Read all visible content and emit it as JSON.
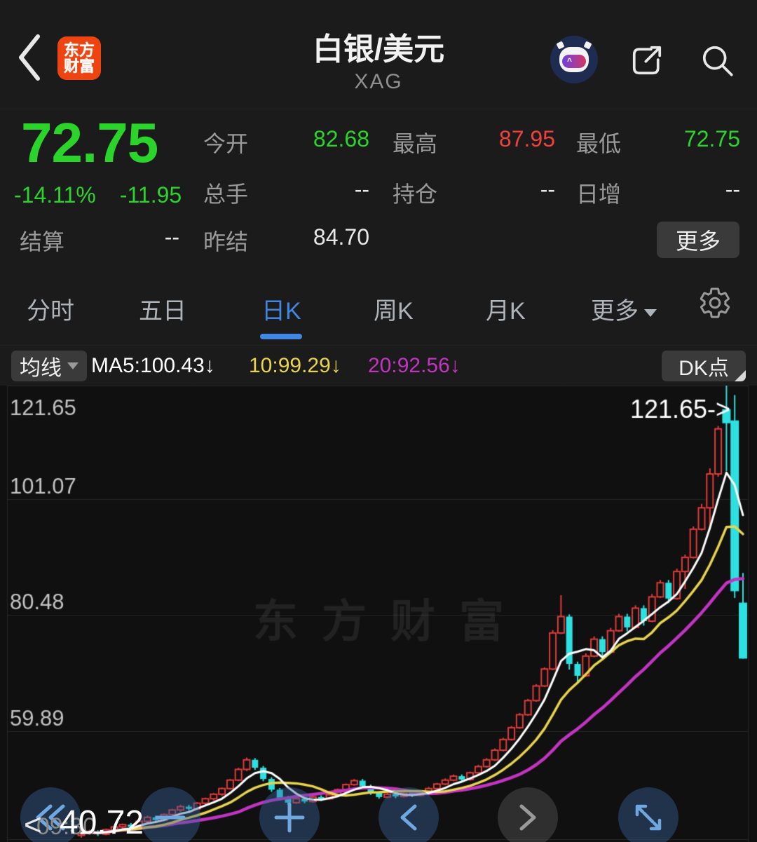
{
  "header": {
    "logo_line1": "东方",
    "logo_line2": "财富",
    "title": "白银/美元",
    "subtitle": "XAG"
  },
  "quote": {
    "price": "72.75",
    "change_pct": "-14.11%",
    "change_val": "-11.95",
    "fields": [
      {
        "label": "今开",
        "value": "82.68",
        "color": "green"
      },
      {
        "label": "最高",
        "value": "87.95",
        "color": "red"
      },
      {
        "label": "最低",
        "value": "72.75",
        "color": "green"
      },
      {
        "label": "总手",
        "value": "--",
        "color": "white"
      },
      {
        "label": "持仓",
        "value": "--",
        "color": "white"
      },
      {
        "label": "日增",
        "value": "--",
        "color": "white"
      },
      {
        "label": "结算",
        "value": "--",
        "color": "white"
      },
      {
        "label": "昨结",
        "value": "84.70",
        "color": "white"
      }
    ],
    "more_label": "更多"
  },
  "tabs": {
    "items": [
      {
        "label": "分时"
      },
      {
        "label": "五日"
      },
      {
        "label": "日K"
      },
      {
        "label": "周K"
      },
      {
        "label": "月K"
      },
      {
        "label": "更多"
      }
    ],
    "active_index": 2
  },
  "indicator_bar": {
    "ma_selector": "均线",
    "ma5": "MA5:100.43↓",
    "ma10": "10:99.29↓",
    "ma20": "20:92.56↓",
    "dk_label": "DK点"
  },
  "chart_data": {
    "type": "candlestick",
    "title": "白银/美元 XAG 日K",
    "ylim": [
      40.72,
      121.65
    ],
    "y_ticks": [
      121.65,
      101.07,
      80.48,
      59.89,
      40.72
    ],
    "annotation": "121.65->",
    "watermark": "东方财富",
    "bottom_axis_label": "40.72",
    "pan_hint": "<",
    "clipped_time_label": "09:30",
    "up_color": "#e23b3b",
    "down_color": "#2ee0e0",
    "grid_color": "#262626",
    "ma_lines": [
      {
        "name": "MA5",
        "color": "#ffffff",
        "last": 100.43
      },
      {
        "name": "MA10",
        "color": "#e8d44d",
        "last": 99.29
      },
      {
        "name": "MA20",
        "color": "#c234c2",
        "last": 92.56
      }
    ],
    "candles": [
      [
        41.4,
        42.0,
        41.0,
        41.8
      ],
      [
        41.8,
        42.4,
        41.5,
        42.1
      ],
      [
        42.1,
        42.3,
        41.3,
        41.6
      ],
      [
        41.6,
        42.6,
        41.4,
        42.4
      ],
      [
        42.4,
        43.1,
        42.1,
        42.9
      ],
      [
        42.9,
        43.5,
        42.6,
        43.3
      ],
      [
        43.3,
        43.6,
        42.6,
        42.9
      ],
      [
        42.9,
        44.1,
        42.7,
        43.9
      ],
      [
        43.9,
        44.9,
        43.6,
        44.6
      ],
      [
        44.6,
        44.9,
        43.8,
        44.1
      ],
      [
        44.1,
        45.3,
        43.9,
        45.1
      ],
      [
        45.1,
        46.1,
        44.8,
        45.9
      ],
      [
        45.9,
        46.8,
        45.6,
        46.5
      ],
      [
        46.5,
        46.8,
        45.8,
        46.1
      ],
      [
        46.1,
        47.3,
        45.9,
        47.1
      ],
      [
        47.1,
        48.1,
        46.8,
        47.9
      ],
      [
        47.9,
        48.9,
        47.6,
        48.7
      ],
      [
        48.7,
        49.9,
        48.4,
        49.7
      ],
      [
        49.7,
        51.4,
        49.5,
        51.2
      ],
      [
        51.2,
        53.4,
        51.0,
        53.1
      ],
      [
        53.1,
        55.2,
        52.8,
        54.8
      ],
      [
        54.8,
        55.1,
        53.0,
        53.4
      ],
      [
        53.4,
        53.7,
        51.0,
        51.4
      ],
      [
        51.4,
        51.7,
        49.1,
        49.5
      ],
      [
        49.5,
        49.8,
        47.6,
        48.0
      ],
      [
        48.0,
        48.4,
        46.8,
        47.2
      ],
      [
        47.2,
        48.2,
        47.0,
        47.9
      ],
      [
        47.9,
        48.1,
        47.1,
        47.4
      ],
      [
        47.4,
        48.5,
        47.2,
        48.2
      ],
      [
        48.2,
        48.5,
        47.5,
        47.9
      ],
      [
        47.9,
        48.8,
        47.7,
        48.6
      ],
      [
        48.6,
        49.7,
        48.3,
        49.5
      ],
      [
        49.5,
        50.6,
        49.3,
        50.4
      ],
      [
        50.4,
        51.4,
        50.2,
        51.1
      ],
      [
        51.1,
        51.4,
        49.8,
        50.1
      ],
      [
        50.1,
        50.4,
        48.6,
        49.0
      ],
      [
        49.0,
        49.2,
        47.9,
        48.2
      ],
      [
        48.2,
        49.0,
        48.0,
        48.7
      ],
      [
        48.7,
        48.9,
        48.0,
        48.3
      ],
      [
        48.3,
        49.2,
        48.1,
        48.9
      ],
      [
        48.9,
        49.1,
        48.2,
        48.5
      ],
      [
        48.5,
        49.4,
        48.3,
        49.1
      ],
      [
        49.1,
        50.0,
        48.9,
        49.7
      ],
      [
        49.7,
        50.7,
        49.5,
        50.5
      ],
      [
        50.5,
        51.5,
        50.3,
        51.2
      ],
      [
        51.2,
        52.2,
        51.0,
        51.9
      ],
      [
        51.9,
        52.2,
        51.0,
        51.3
      ],
      [
        51.3,
        52.7,
        51.1,
        52.5
      ],
      [
        52.5,
        53.9,
        52.3,
        53.6
      ],
      [
        53.6,
        55.1,
        53.4,
        54.8
      ],
      [
        54.8,
        56.8,
        54.6,
        56.5
      ],
      [
        56.5,
        58.7,
        56.3,
        58.4
      ],
      [
        58.4,
        60.8,
        58.2,
        60.5
      ],
      [
        60.5,
        63.1,
        60.3,
        62.8
      ],
      [
        62.8,
        65.6,
        62.6,
        65.3
      ],
      [
        65.3,
        68.2,
        65.1,
        67.9
      ],
      [
        67.9,
        71.2,
        67.7,
        70.9
      ],
      [
        70.9,
        77.8,
        70.7,
        77.3
      ],
      [
        77.3,
        84.0,
        77.1,
        80.2
      ],
      [
        80.2,
        80.6,
        70.8,
        71.8
      ],
      [
        71.8,
        72.2,
        68.6,
        69.7
      ],
      [
        69.7,
        73.7,
        69.5,
        73.2
      ],
      [
        73.2,
        76.7,
        73.0,
        76.2
      ],
      [
        76.2,
        76.7,
        73.0,
        73.9
      ],
      [
        73.9,
        78.2,
        73.7,
        77.7
      ],
      [
        77.7,
        80.7,
        77.5,
        80.2
      ],
      [
        80.2,
        80.7,
        77.6,
        78.3
      ],
      [
        78.3,
        82.2,
        78.1,
        81.7
      ],
      [
        81.7,
        82.2,
        78.6,
        79.4
      ],
      [
        79.4,
        84.2,
        79.2,
        83.7
      ],
      [
        83.7,
        86.7,
        83.5,
        86.2
      ],
      [
        86.2,
        86.7,
        82.6,
        83.4
      ],
      [
        83.4,
        88.7,
        83.2,
        88.2
      ],
      [
        88.2,
        91.2,
        85.1,
        90.7
      ],
      [
        90.7,
        96.2,
        90.5,
        95.7
      ],
      [
        95.7,
        100.2,
        95.5,
        99.5
      ],
      [
        99.5,
        106.5,
        96.0,
        105.5
      ],
      [
        105.5,
        114.0,
        105.0,
        113.5
      ],
      [
        117.0,
        121.65,
        106.0,
        114.5
      ],
      [
        115.0,
        119.5,
        83.5,
        84.7
      ],
      [
        82.68,
        87.95,
        72.75,
        72.75
      ]
    ]
  },
  "bottom_nav": {
    "buttons": [
      {
        "name": "fast-rewind"
      },
      {
        "name": "zoom-out"
      },
      {
        "name": "zoom-in"
      },
      {
        "name": "pan-left"
      },
      {
        "name": "pan-right",
        "disabled": true
      },
      {
        "name": "expand"
      }
    ]
  }
}
